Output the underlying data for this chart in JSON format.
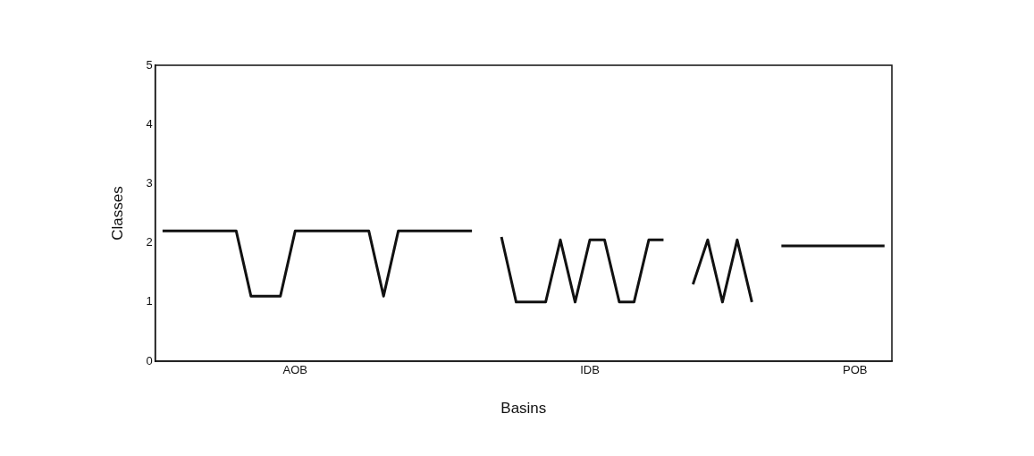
{
  "chart_data": {
    "type": "line",
    "xlabel": "Basins",
    "ylabel": "Classes",
    "categories": [
      null,
      null,
      null,
      null,
      null,
      null,
      null,
      null,
      null,
      "AOB",
      null,
      null,
      null,
      null,
      null,
      null,
      null,
      null,
      null,
      null,
      null,
      null,
      null,
      null,
      null,
      null,
      null,
      null,
      null,
      "IDB",
      null,
      null,
      null,
      null,
      null,
      null,
      null,
      null,
      null,
      null,
      null,
      null,
      null,
      null,
      null,
      null,
      null,
      "POB",
      null,
      null
    ],
    "series": [
      {
        "color": "#111111",
        "values": [
          2.2,
          2.2,
          2.2,
          2.2,
          2.2,
          2.2,
          1.1,
          1.1,
          1.1,
          2.2,
          2.2,
          2.2,
          2.2,
          2.2,
          2.2,
          1.1,
          2.2,
          2.2,
          2.2,
          2.2,
          2.2,
          2.2,
          null,
          2.1,
          1.0,
          1.0,
          1.0,
          2.05,
          1.0,
          2.05,
          2.05,
          1.0,
          1.0,
          2.05,
          2.05,
          null,
          1.3,
          2.05,
          1.0,
          2.05,
          1.0,
          null,
          1.95,
          1.95,
          1.95,
          1.95,
          1.95,
          1.95,
          1.95,
          1.95
        ]
      }
    ],
    "ylim": [
      0,
      5
    ],
    "yticks": [
      0,
      1,
      2,
      3,
      4,
      5
    ],
    "grid": false,
    "legend": false,
    "marker": "none",
    "line_style": "solid"
  }
}
